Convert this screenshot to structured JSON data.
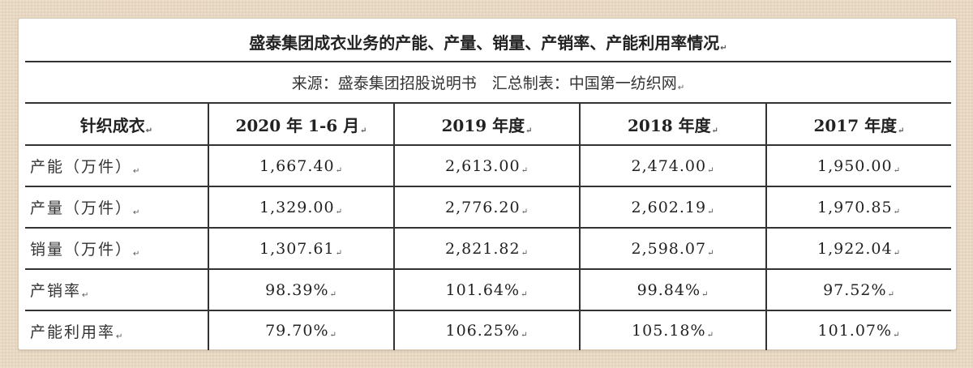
{
  "table": {
    "title": "盛泰集团成衣业务的产能、产量、销量、产销率、产能利用率情况",
    "source": "来源：盛泰集团招股说明书　汇总制表：中国第一纺织网",
    "paragraph_mark": "↵",
    "headers": [
      "针织成衣",
      "2020 年 1-6 月",
      "2019 年度",
      "2018 年度",
      "2017 年度"
    ],
    "rows": [
      {
        "label": "产能（万件）",
        "values": [
          "1,667.40",
          "2,613.00",
          "2,474.00",
          "1,950.00"
        ]
      },
      {
        "label": "产量（万件）",
        "values": [
          "1,329.00",
          "2,776.20",
          "2,602.19",
          "1,970.85"
        ]
      },
      {
        "label": "销量（万件）",
        "values": [
          "1,307.61",
          "2,821.82",
          "2,598.07",
          "1,922.04"
        ]
      },
      {
        "label": "产销率",
        "values": [
          "98.39%",
          "101.64%",
          "99.84%",
          "97.52%"
        ]
      },
      {
        "label": "产能利用率",
        "values": [
          "79.70%",
          "106.25%",
          "105.18%",
          "101.07%"
        ]
      }
    ]
  }
}
